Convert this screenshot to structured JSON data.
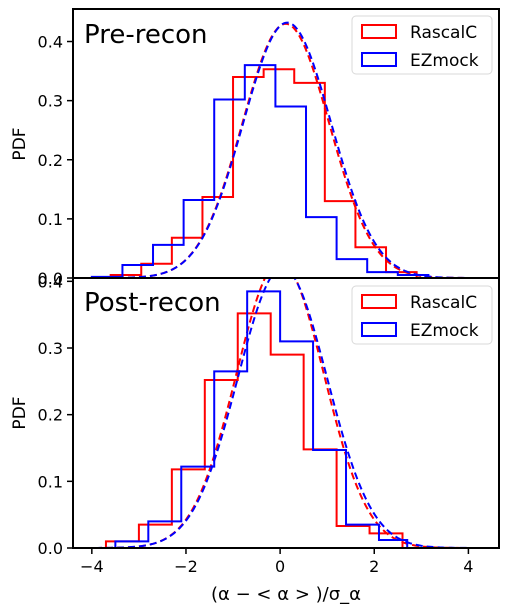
{
  "chart_data": [
    {
      "type": "histogram",
      "title": "Pre-recon",
      "ylabel": "PDF",
      "xlim": [
        -4.4,
        4.65
      ],
      "ylim": [
        0,
        0.455
      ],
      "yticks": [
        0.0,
        0.1,
        0.2,
        0.3,
        0.4
      ],
      "ytick_labels": [
        "0.0",
        "0.1",
        "0.2",
        "0.3",
        "0.4"
      ],
      "legend": "top-right",
      "series": [
        {
          "name": "RascalC",
          "color": "#ff0000",
          "edges": [
            -3.6,
            -2.95,
            -2.3,
            -1.65,
            -1.0,
            -0.35,
            0.3,
            0.95,
            1.6,
            2.25,
            2.9,
            3.55
          ],
          "values": [
            0.005,
            0.024,
            0.068,
            0.137,
            0.34,
            0.353,
            0.33,
            0.13,
            0.052,
            0.01,
            0.0
          ],
          "fit": {
            "mu": 0.12,
            "sigma": 0.925,
            "amp": 0.43
          }
        },
        {
          "name": "EZmock",
          "color": "#0000ff",
          "edges": [
            -4.0,
            -3.35,
            -2.7,
            -2.05,
            -1.4,
            -0.75,
            -0.1,
            0.55,
            1.2,
            1.85,
            2.5,
            3.15,
            3.75
          ],
          "values": [
            0.002,
            0.022,
            0.056,
            0.132,
            0.302,
            0.36,
            0.29,
            0.103,
            0.032,
            0.01,
            0.005,
            0.0
          ],
          "fit": {
            "mu": 0.15,
            "sigma": 0.935,
            "amp": 0.432
          }
        }
      ]
    },
    {
      "type": "histogram",
      "title": "Post-recon",
      "ylabel": "PDF",
      "xlabel": "(α − < α > )/σ_α",
      "xlim": [
        -4.4,
        4.65
      ],
      "ylim": [
        0,
        0.405
      ],
      "yticks": [
        0.0,
        0.1,
        0.2,
        0.3,
        0.4
      ],
      "ytick_labels": [
        "0.0",
        "0.1",
        "0.2",
        "0.3",
        "0.4"
      ],
      "xticks": [
        -4,
        -2,
        0,
        2,
        4
      ],
      "xtick_labels": [
        "−4",
        "−2",
        "0",
        "2",
        "4"
      ],
      "legend": "top-right",
      "series": [
        {
          "name": "RascalC",
          "color": "#ff0000",
          "edges": [
            -3.7,
            -3.0,
            -2.3,
            -1.6,
            -0.9,
            -0.2,
            0.5,
            1.2,
            1.9,
            2.6,
            3.4
          ],
          "values": [
            0.01,
            0.035,
            0.118,
            0.252,
            0.352,
            0.29,
            0.148,
            0.033,
            0.022,
            0.0
          ],
          "fit": {
            "mu": 0.0,
            "sigma": 0.93,
            "amp": 0.43
          }
        },
        {
          "name": "EZmock",
          "color": "#0000ff",
          "edges": [
            -3.5,
            -2.8,
            -2.1,
            -1.4,
            -0.7,
            0.0,
            0.7,
            1.4,
            2.1,
            2.7,
            3.35
          ],
          "values": [
            0.01,
            0.04,
            0.122,
            0.265,
            0.385,
            0.31,
            0.147,
            0.035,
            0.012,
            0.0
          ],
          "fit": {
            "mu": 0.05,
            "sigma": 0.95,
            "amp": 0.42
          }
        }
      ]
    }
  ]
}
